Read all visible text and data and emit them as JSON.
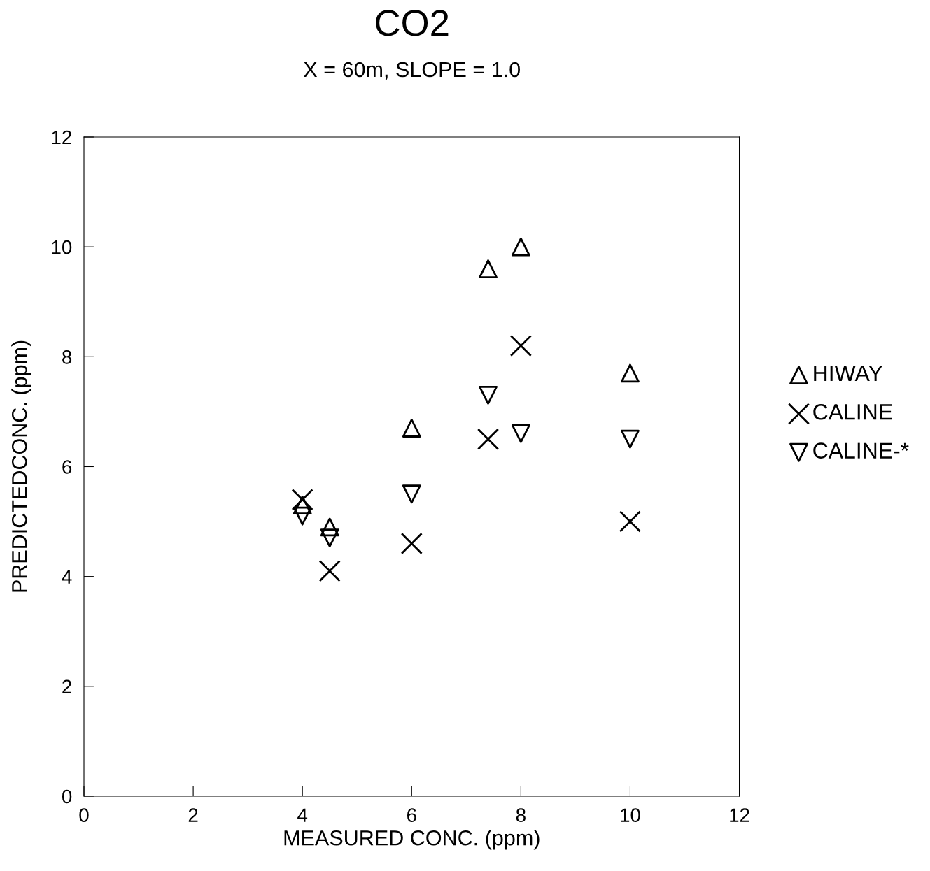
{
  "chart_data": {
    "type": "scatter",
    "title": "CO2",
    "subtitle": "X = 60m, SLOPE = 1.0",
    "xlabel": "MEASURED CONC. (ppm)",
    "ylabel": "PREDICTEDCONC. (ppm)",
    "x": [
      4,
      4.5,
      6,
      7.4,
      8,
      10
    ],
    "series": [
      {
        "name": "HIWAY",
        "color": "#000000",
        "marker": "triangle",
        "values": [
          5.3,
          4.9,
          6.7,
          9.6,
          10.0,
          7.7
        ]
      },
      {
        "name": "CALINE",
        "color": "#000000",
        "marker": "cross",
        "values": [
          5.4,
          4.1,
          4.6,
          6.5,
          8.2,
          5.0
        ]
      },
      {
        "name": "CALINE-*",
        "color": "#000000",
        "marker": "triangle_down",
        "values": [
          5.1,
          4.7,
          5.5,
          7.3,
          6.6,
          6.5
        ]
      }
    ],
    "xlim": [
      0,
      12
    ],
    "ylim": [
      0,
      12
    ],
    "xticks": [
      0,
      2,
      4,
      6,
      8,
      10,
      12
    ],
    "yticks": [
      0,
      2,
      4,
      6,
      8,
      10,
      12
    ],
    "grid": false,
    "legend": "right"
  }
}
